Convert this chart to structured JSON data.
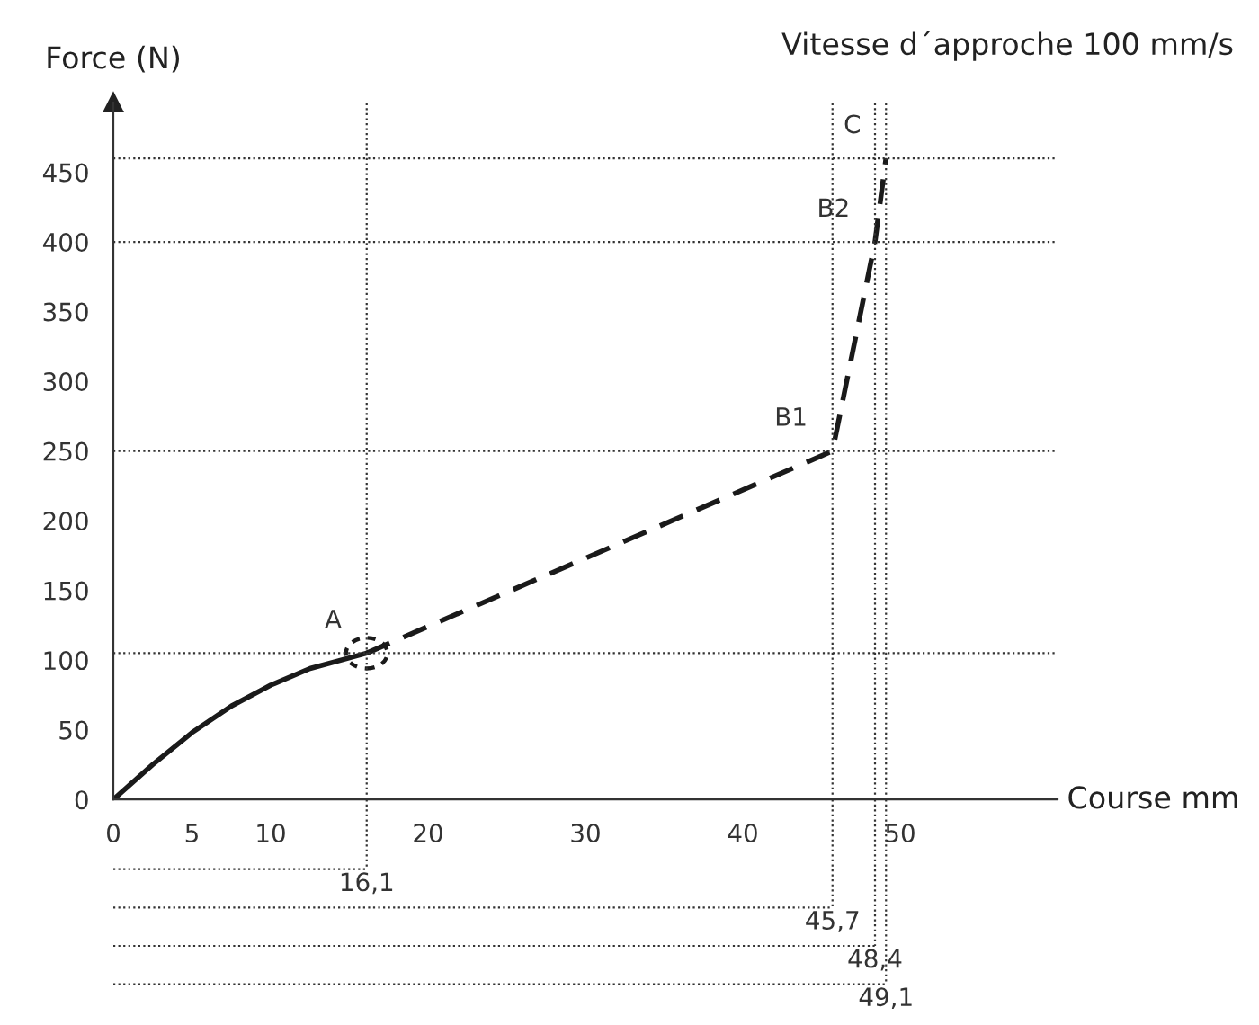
{
  "chart_data": {
    "type": "line",
    "title": "Vitesse d´approche 100 mm/s",
    "ylabel": "Force (N)",
    "xlabel": "Course mm",
    "xlim": [
      0,
      60
    ],
    "xticks": [
      0,
      5,
      10,
      20,
      30,
      40,
      50
    ],
    "ylim": [
      0,
      500
    ],
    "yticks": [
      0,
      50,
      100,
      150,
      200,
      250,
      300,
      350,
      400,
      450
    ],
    "grid": false,
    "legend": false,
    "marker": "none",
    "series": [
      {
        "color": "#1a1a1a",
        "line_style": "solid",
        "x": [
          0,
          2.5,
          5,
          7.5,
          10,
          12.5,
          14.8,
          16.1
        ],
        "values": [
          0,
          25,
          48,
          67,
          82,
          94,
          101,
          105
        ]
      },
      {
        "color": "#1a1a1a",
        "line_style": "dashed",
        "x": [
          16.1,
          45.7,
          48.4,
          49.1
        ],
        "values": [
          105,
          250,
          400,
          460
        ]
      }
    ],
    "ref_lines": [
      {
        "axis": "y",
        "value": 105,
        "label": null,
        "line_style": "dotted"
      },
      {
        "axis": "y",
        "value": 250,
        "label": null,
        "line_style": "dotted"
      },
      {
        "axis": "y",
        "value": 400,
        "label": null,
        "line_style": "dotted"
      },
      {
        "axis": "y",
        "value": 460,
        "label": null,
        "line_style": "dotted"
      },
      {
        "axis": "x",
        "value": 16.1,
        "label": "16,1",
        "line_style": "dotted"
      },
      {
        "axis": "x",
        "value": 45.7,
        "label": "45,7",
        "line_style": "dotted"
      },
      {
        "axis": "x",
        "value": 48.4,
        "label": "48,4",
        "line_style": "dotted"
      },
      {
        "axis": "x",
        "value": 49.1,
        "label": "49,1",
        "line_style": "dotted"
      }
    ],
    "annotations": [
      {
        "text": "A",
        "x": 16.1,
        "y": 105
      },
      {
        "text": "B1",
        "x": 45.7,
        "y": 250
      },
      {
        "text": "B2",
        "x": 48.4,
        "y": 400
      },
      {
        "text": "C",
        "x": 49.1,
        "y": 460
      }
    ]
  }
}
